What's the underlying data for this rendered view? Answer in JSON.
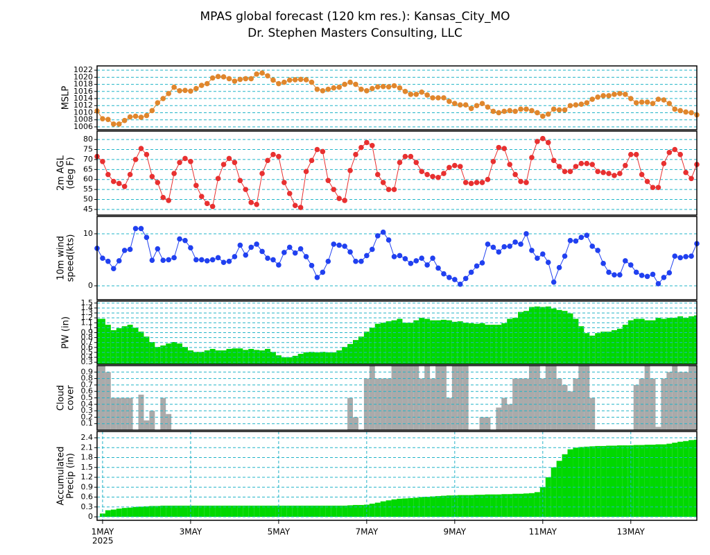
{
  "title": "MPAS global forecast (120 km res.): Kansas_City_MO",
  "subtitle": "Dr. Stephen Masters Consulting, LLC",
  "time_axis": {
    "x": [
      -3,
      0,
      3,
      6,
      9,
      12,
      15,
      18,
      21,
      24,
      27,
      30,
      33,
      36,
      39,
      42,
      45,
      48,
      51,
      54,
      57,
      60,
      63,
      66,
      69,
      72,
      75,
      78,
      81,
      84,
      87,
      90,
      93,
      96,
      99,
      102,
      105,
      108,
      111,
      114,
      117,
      120,
      123,
      126,
      129,
      132,
      135,
      138,
      141,
      144,
      147,
      150,
      153,
      156,
      159,
      162,
      165,
      168,
      171,
      174,
      177,
      180,
      183,
      186,
      189,
      192,
      195,
      198,
      201,
      204,
      207,
      210,
      213,
      216,
      219,
      222,
      225,
      228,
      231,
      234,
      237,
      240,
      243,
      246,
      249,
      252,
      255,
      258,
      261,
      264,
      267,
      270,
      273,
      276,
      279,
      282,
      285,
      288,
      291,
      294,
      297,
      300,
      303,
      306,
      309,
      312,
      315,
      318,
      321,
      324
    ],
    "xlim": [
      -3,
      324
    ],
    "xticks": [
      {
        "value": 0,
        "label": "1MAY"
      },
      {
        "value": 48,
        "label": "3MAY"
      },
      {
        "value": 96,
        "label": "5MAY"
      },
      {
        "value": 144,
        "label": "7MAY"
      },
      {
        "value": 192,
        "label": "9MAY"
      },
      {
        "value": 240,
        "label": "11MAY"
      },
      {
        "value": 288,
        "label": "13MAY"
      }
    ],
    "year": "2025"
  },
  "chart_data": [
    {
      "type": "line",
      "ylabel": [
        "MSLP"
      ],
      "color": "#e0862c",
      "ylim": [
        1005.2,
        1023.2
      ],
      "yticks": [
        1006,
        1008,
        1010,
        1012,
        1014,
        1016,
        1018,
        1020,
        1022
      ],
      "grid": true,
      "values": [
        1010.5,
        1008.3,
        1008.1,
        1006.8,
        1006.8,
        1007.8,
        1008.8,
        1009,
        1008.7,
        1009.2,
        1010.6,
        1012.8,
        1014,
        1015.4,
        1017.2,
        1016.2,
        1016.3,
        1016.1,
        1016.8,
        1017.7,
        1018.2,
        1019.8,
        1020.2,
        1020.1,
        1019.6,
        1018.9,
        1019.4,
        1019.6,
        1019.6,
        1020.9,
        1021.2,
        1020.4,
        1019.2,
        1018.2,
        1018.6,
        1019.2,
        1019.3,
        1019.4,
        1019.3,
        1018.6,
        1016.6,
        1016.2,
        1016.6,
        1017,
        1017.2,
        1018,
        1018.6,
        1018,
        1016.6,
        1016.2,
        1016.8,
        1017.3,
        1017.4,
        1017.3,
        1017.6,
        1017,
        1016,
        1015.2,
        1015.2,
        1015.8,
        1015,
        1014.2,
        1014.2,
        1014.2,
        1013.2,
        1012.6,
        1012.2,
        1012.2,
        1011.2,
        1012,
        1012.6,
        1011.6,
        1010.4,
        1010,
        1010.4,
        1010.6,
        1010.4,
        1011,
        1011,
        1010.6,
        1010,
        1009,
        1009.6,
        1011,
        1010.8,
        1010.8,
        1012,
        1012.2,
        1012.4,
        1012.8,
        1013.8,
        1014.4,
        1014.8,
        1014.8,
        1015.2,
        1015.4,
        1015.2,
        1014,
        1012.8,
        1013,
        1013,
        1012.6,
        1013.8,
        1013.6,
        1012.6,
        1011,
        1010.6,
        1010.2,
        1010,
        1009.4
      ]
    },
    {
      "type": "line",
      "ylabel": [
        "2m AGL",
        "(deg F)"
      ],
      "color": "#e83030",
      "ylim": [
        42.2,
        84.2
      ],
      "yticks": [
        45,
        50,
        55,
        60,
        65,
        70,
        75,
        80
      ],
      "grid": true,
      "values": [
        71.5,
        69,
        62.5,
        59,
        58,
        56.5,
        62.5,
        70,
        75.5,
        72.5,
        61.5,
        58.5,
        51,
        49.5,
        63,
        68.5,
        70.5,
        69,
        57,
        51.5,
        48,
        46.5,
        60.5,
        67.5,
        70.5,
        68.5,
        59.5,
        55,
        48.5,
        47.5,
        63,
        69.5,
        72.5,
        71.5,
        58.5,
        53,
        47,
        46,
        64,
        69.5,
        75,
        74,
        59.5,
        55,
        50.5,
        49.5,
        64.5,
        72.5,
        76,
        78.5,
        77,
        62.5,
        58.5,
        55,
        55,
        68.5,
        71.5,
        71.5,
        68.5,
        64,
        62.5,
        61.5,
        61,
        63,
        66,
        67,
        66.5,
        58.5,
        58,
        58.5,
        58.5,
        60,
        69,
        76,
        75.5,
        67.5,
        62.5,
        59,
        58.5,
        71,
        79,
        80.5,
        78.5,
        69.5,
        66.5,
        64,
        64,
        66.5,
        68,
        68,
        67.5,
        64,
        63.5,
        63,
        62,
        63,
        67,
        72.5,
        72.5,
        62.5,
        59,
        56,
        56,
        68,
        73.5,
        75,
        72.5,
        63.5,
        60.5,
        67.5
      ]
    },
    {
      "type": "line",
      "ylabel": [
        "10m wind",
        "speed(kts)"
      ],
      "color": "#2040f0",
      "ylim": [
        -2.67,
        13.33
      ],
      "yticks": [
        0,
        10
      ],
      "grid": true,
      "values": [
        7.2,
        5.3,
        4.7,
        3.3,
        4.8,
        6.8,
        7,
        11,
        11,
        9.3,
        4.9,
        7.1,
        4.9,
        5,
        5.4,
        9,
        8.7,
        7.3,
        5,
        5,
        4.8,
        5,
        5.4,
        4.5,
        4.7,
        5.6,
        7.8,
        5.9,
        7.4,
        8,
        6.6,
        5.3,
        5,
        4,
        6.4,
        7.4,
        6.3,
        7.1,
        5.6,
        3.9,
        1.6,
        2.6,
        4.7,
        8,
        7.8,
        7.6,
        6.5,
        4.7,
        4.7,
        5.8,
        7,
        9.6,
        10.3,
        8.8,
        5.6,
        5.8,
        5.2,
        4.3,
        4.8,
        5.3,
        4,
        5.3,
        3.4,
        2.3,
        1.6,
        1.2,
        0.3,
        1.4,
        2.6,
        3.8,
        4.4,
        8,
        7.4,
        6.5,
        7.5,
        7.6,
        8.4,
        8,
        10,
        6.8,
        5.3,
        6.1,
        4.5,
        0.7,
        3.5,
        5.7,
        8.7,
        8.6,
        9.3,
        9.7,
        7.6,
        6.8,
        4.3,
        2.6,
        2.1,
        2.1,
        4.8,
        4,
        2.6,
        2,
        1.8,
        2.2,
        0.4,
        1.6,
        2.5,
        5.7,
        5.4,
        5.6,
        5.7,
        8.1
      ]
    },
    {
      "type": "bar",
      "ylabel": [
        "PW (in)"
      ],
      "color": "#00d800",
      "ylim": [
        0.26,
        1.54
      ],
      "yticks": [
        0.3,
        0.4,
        0.5,
        0.6,
        0.7,
        0.8,
        0.9,
        1,
        1.1,
        1.2,
        1.3,
        1.4,
        1.5
      ],
      "grid": true,
      "values": [
        1.18,
        1.18,
        1.06,
        0.95,
        0.99,
        1.03,
        1.06,
        1,
        0.92,
        0.82,
        0.71,
        0.61,
        0.64,
        0.68,
        0.71,
        0.68,
        0.61,
        0.54,
        0.51,
        0.51,
        0.54,
        0.57,
        0.54,
        0.54,
        0.57,
        0.58,
        0.58,
        0.55,
        0.57,
        0.55,
        0.54,
        0.57,
        0.51,
        0.44,
        0.4,
        0.4,
        0.43,
        0.47,
        0.5,
        0.51,
        0.5,
        0.51,
        0.5,
        0.5,
        0.54,
        0.61,
        0.67,
        0.75,
        0.82,
        0.92,
        1,
        1.08,
        1.1,
        1.13,
        1.15,
        1.18,
        1.1,
        1.1,
        1.15,
        1.2,
        1.18,
        1.15,
        1.15,
        1.16,
        1.15,
        1.12,
        1.13,
        1.1,
        1.09,
        1.08,
        1.09,
        1.06,
        1.06,
        1.06,
        1.09,
        1.18,
        1.2,
        1.32,
        1.34,
        1.42,
        1.43,
        1.42,
        1.43,
        1.39,
        1.36,
        1.34,
        1.29,
        1.18,
        1.03,
        0.89,
        0.84,
        0.89,
        0.92,
        0.92,
        0.95,
        0.98,
        1.06,
        1.15,
        1.18,
        1.18,
        1.15,
        1.15,
        1.2,
        1.18,
        1.2,
        1.2,
        1.23,
        1.2,
        1.23,
        1.25
      ]
    },
    {
      "type": "bar",
      "ylabel": [
        "Cloud",
        "cover"
      ],
      "color": "#aaaaaa",
      "ylim": [
        0,
        1
      ],
      "yticks": [
        0.1,
        0.2,
        0.3,
        0.4,
        0.5,
        0.6,
        0.7,
        0.8,
        0.9
      ],
      "grid": true,
      "values": [
        1,
        1,
        0.9,
        0.5,
        0.5,
        0.5,
        0.5,
        0,
        0.55,
        0.15,
        0.3,
        0,
        0.5,
        0.25,
        0,
        0,
        0,
        0,
        0,
        0,
        0,
        0,
        0,
        0,
        0,
        0,
        0,
        0,
        0,
        0,
        0,
        0,
        0,
        0,
        0,
        0,
        0,
        0,
        0,
        0,
        0,
        0,
        0,
        0,
        0,
        0,
        0.5,
        0.2,
        0,
        0.8,
        1,
        0.8,
        0.8,
        0.8,
        1,
        1,
        1,
        1,
        1,
        0.8,
        1,
        0.8,
        1,
        1,
        0.5,
        1,
        1,
        1,
        0,
        0,
        0.2,
        0.2,
        0,
        0.35,
        0.5,
        0.4,
        0.8,
        0.8,
        0.8,
        1,
        1,
        0.8,
        1,
        1,
        0.8,
        0.7,
        0.6,
        0.8,
        1,
        1,
        0.5,
        0,
        0,
        0,
        0,
        0,
        0,
        0,
        0.7,
        0.8,
        1,
        0.8,
        0.05,
        0.8,
        0.9,
        1,
        0.9,
        0.9,
        1,
        1
      ]
    },
    {
      "type": "bar",
      "ylabel": [
        "Accumulated",
        "Precip (in)"
      ],
      "color": "#00d800",
      "ylim": [
        -0.105,
        2.59
      ],
      "yticks": [
        0,
        0.3,
        0.6,
        0.9,
        1.2,
        1.5,
        1.8,
        2.1,
        2.4
      ],
      "grid": true,
      "xgrid": true,
      "values": [
        0,
        0.1,
        0.2,
        0.22,
        0.25,
        0.27,
        0.28,
        0.3,
        0.31,
        0.32,
        0.33,
        0.33,
        0.34,
        0.34,
        0.34,
        0.34,
        0.34,
        0.34,
        0.34,
        0.34,
        0.34,
        0.34,
        0.34,
        0.34,
        0.34,
        0.34,
        0.34,
        0.34,
        0.34,
        0.34,
        0.34,
        0.34,
        0.34,
        0.34,
        0.34,
        0.34,
        0.34,
        0.34,
        0.34,
        0.34,
        0.34,
        0.34,
        0.34,
        0.34,
        0.34,
        0.34,
        0.35,
        0.36,
        0.36,
        0.37,
        0.4,
        0.43,
        0.47,
        0.5,
        0.53,
        0.55,
        0.56,
        0.57,
        0.58,
        0.6,
        0.61,
        0.62,
        0.63,
        0.64,
        0.65,
        0.65,
        0.66,
        0.66,
        0.66,
        0.67,
        0.67,
        0.68,
        0.68,
        0.68,
        0.69,
        0.69,
        0.7,
        0.7,
        0.71,
        0.72,
        0.75,
        0.9,
        1.2,
        1.5,
        1.7,
        1.9,
        2.05,
        2.1,
        2.12,
        2.13,
        2.14,
        2.15,
        2.15,
        2.16,
        2.16,
        2.17,
        2.17,
        2.17,
        2.18,
        2.18,
        2.19,
        2.19,
        2.2,
        2.2,
        2.22,
        2.25,
        2.28,
        2.3,
        2.33,
        2.34
      ]
    }
  ]
}
